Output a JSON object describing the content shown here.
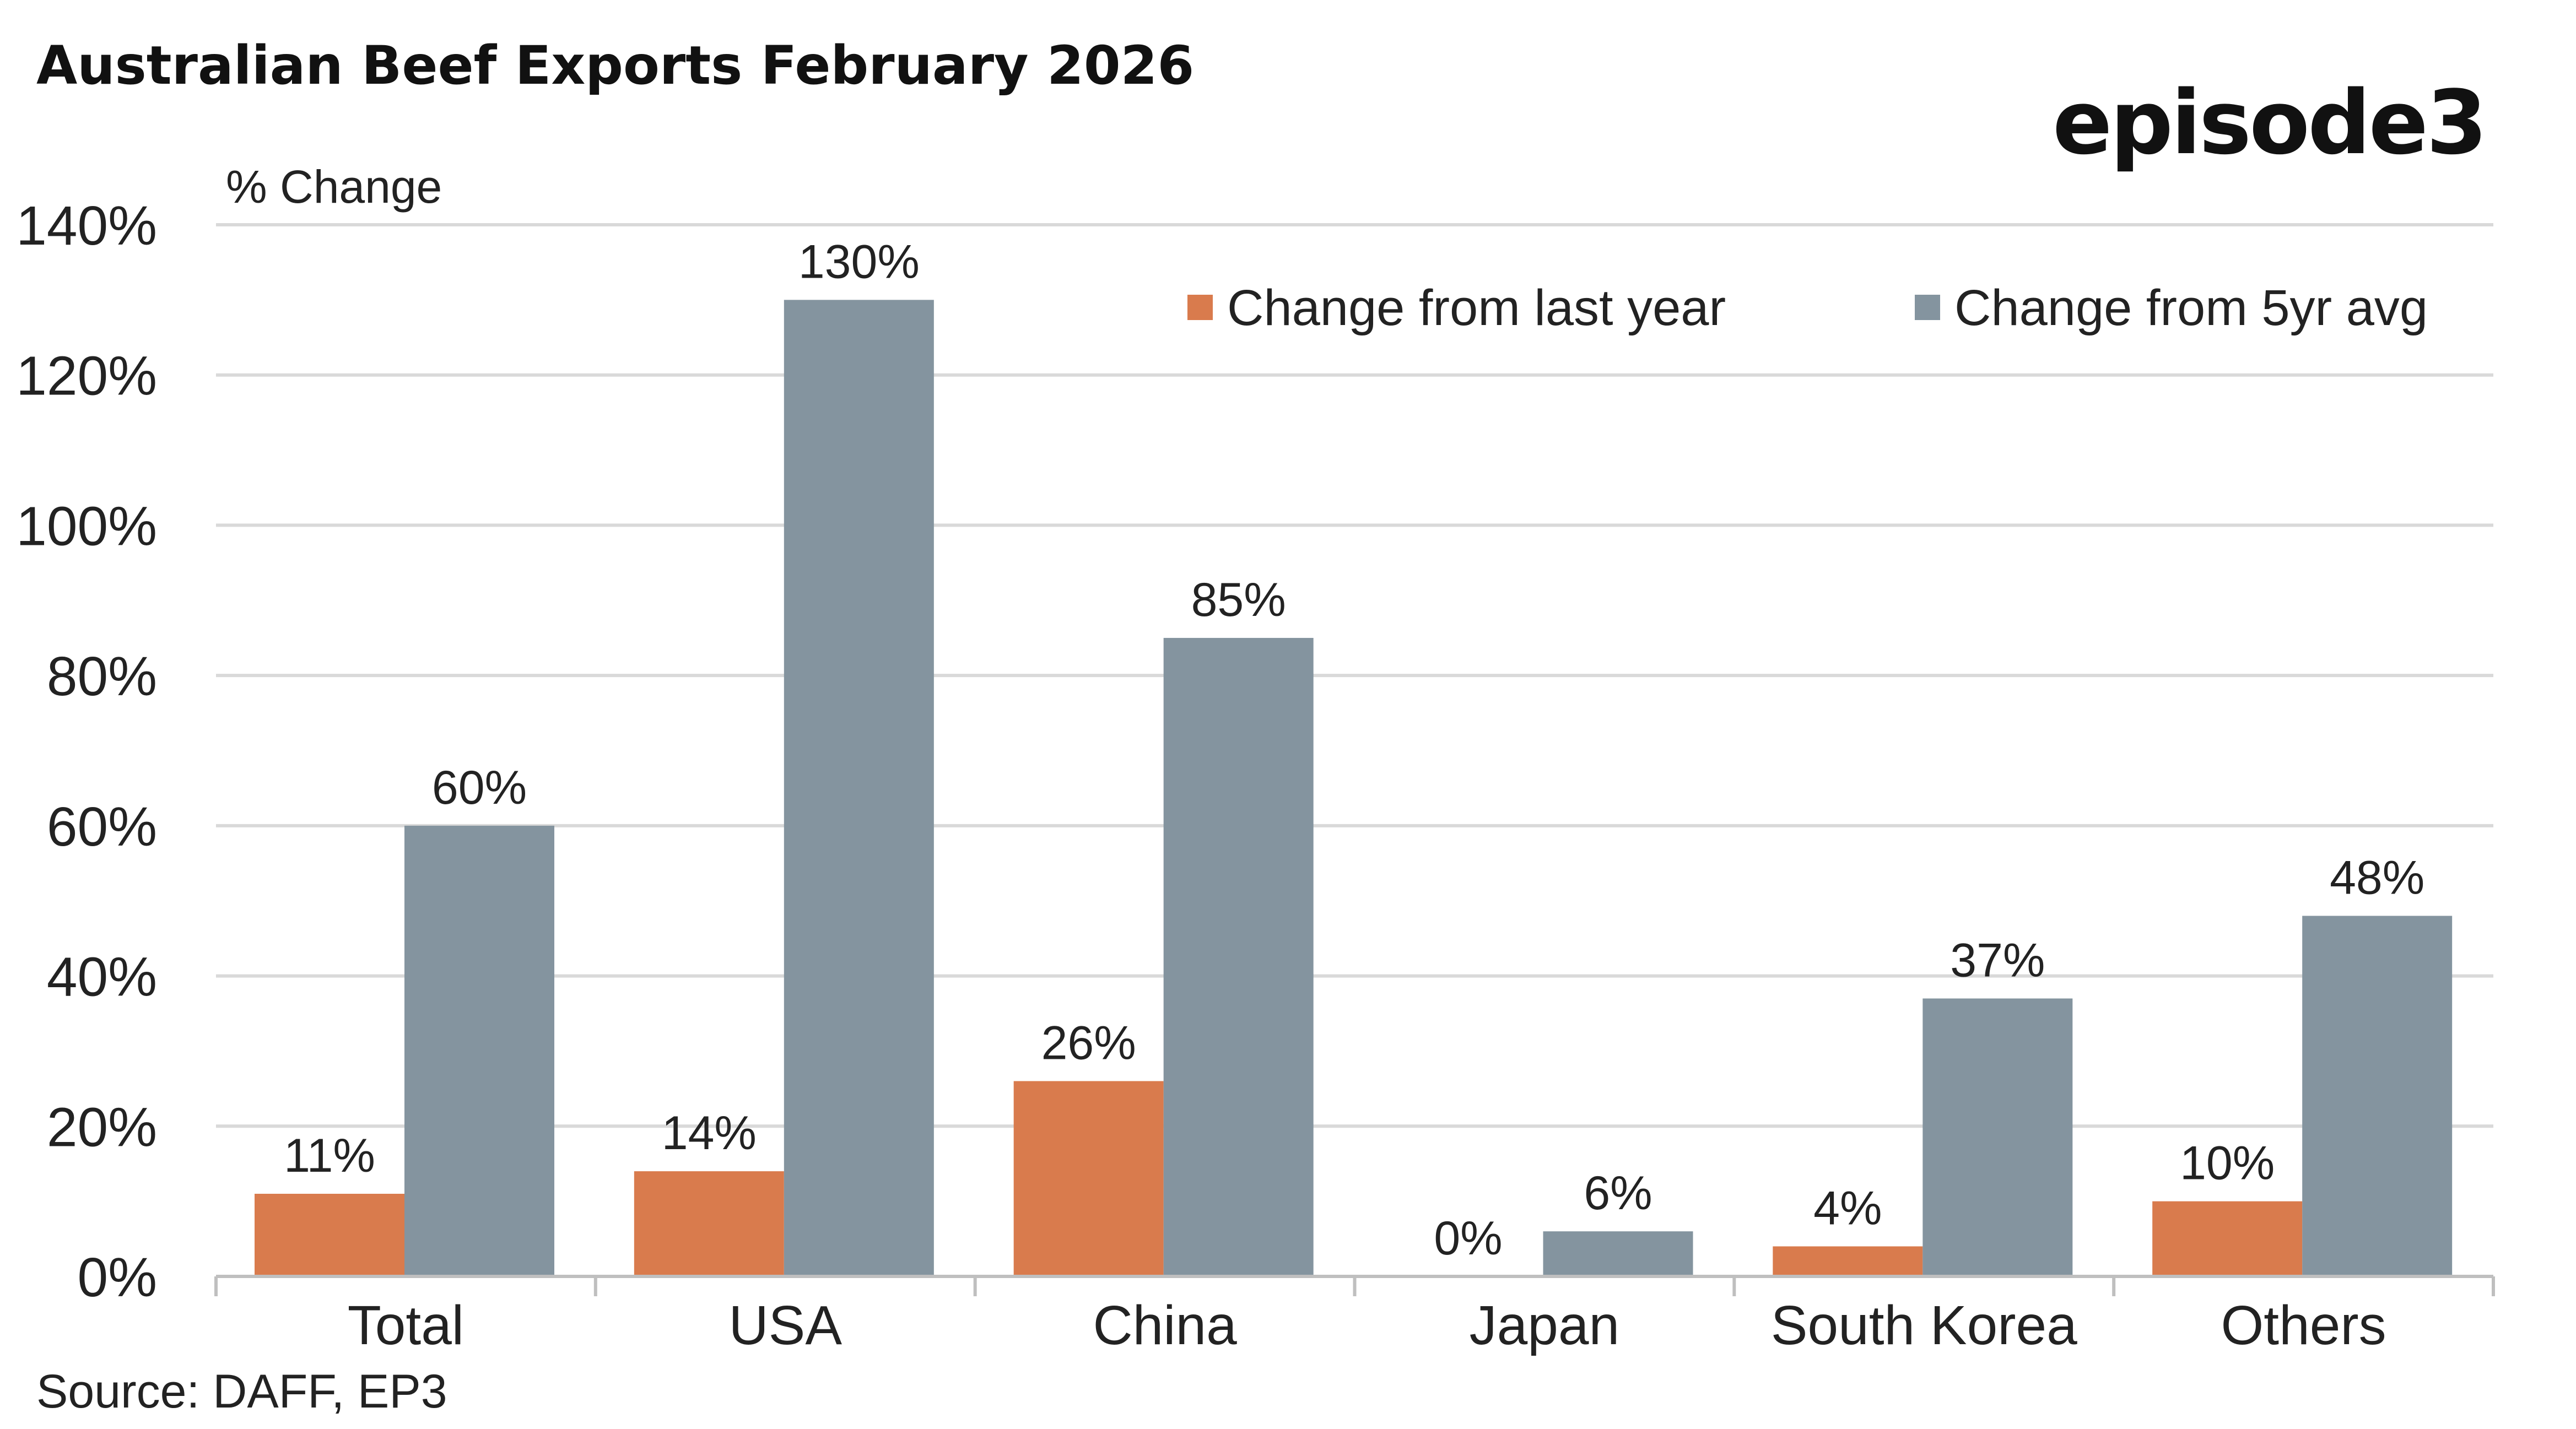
{
  "chart_data": {
    "type": "bar",
    "title": "Australian Beef Exports February 2026",
    "ylabel": "% Change",
    "xlabel": "",
    "categories": [
      "Total",
      "USA",
      "China",
      "Japan",
      "South Korea",
      "Others"
    ],
    "series": [
      {
        "name": "Change from last year",
        "color": "#D97B4D",
        "values": [
          11,
          14,
          26,
          0,
          4,
          10
        ],
        "labels": [
          "11%",
          "14%",
          "26%",
          "0%",
          "4%",
          "10%"
        ]
      },
      {
        "name": "Change from 5yr avg",
        "color": "#84949F",
        "values": [
          60,
          130,
          85,
          6,
          37,
          48
        ],
        "labels": [
          "60%",
          "130%",
          "85%",
          "6%",
          "37%",
          "48%"
        ]
      }
    ],
    "ylim": [
      0,
      140
    ],
    "yticks": [
      0,
      20,
      40,
      60,
      80,
      100,
      120,
      140
    ],
    "ytick_labels": [
      "0%",
      "20%",
      "40%",
      "60%",
      "80%",
      "100%",
      "120%",
      "140%"
    ],
    "grid": true,
    "legend_position": "top-right",
    "source": "Source: DAFF, EP3"
  },
  "brand": {
    "logo_text": "episode3"
  },
  "colors": {
    "grid": "#D9D9D9",
    "axis": "#BFBFBF"
  }
}
